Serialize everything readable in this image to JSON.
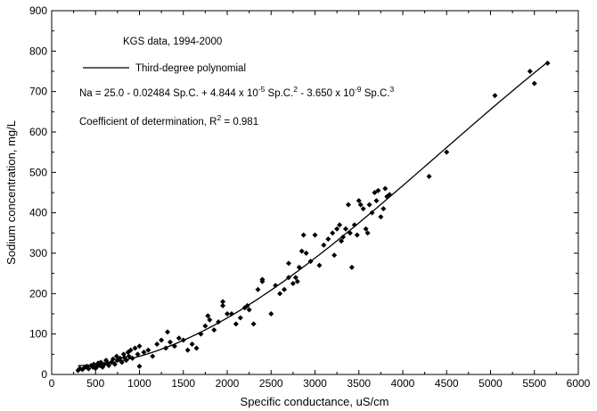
{
  "chart_data": {
    "type": "scatter",
    "xlabel": "Specific conductance, uS/cm",
    "ylabel": "Sodium concentration, mg/L",
    "xlim": [
      0,
      6000
    ],
    "ylim": [
      0,
      900
    ],
    "xticks": [
      "0",
      "500",
      "1000",
      "1500",
      "2000",
      "2500",
      "3000",
      "3500",
      "4000",
      "4500",
      "5000",
      "5500",
      "6000"
    ],
    "yticks": [
      "0",
      "100",
      "200",
      "300",
      "400",
      "500",
      "600",
      "700",
      "800",
      "900"
    ],
    "grid": false,
    "legend": {
      "placement": "top-left",
      "data_label": "KGS data, 1994-2000",
      "line_label": "Third-degree polynomial"
    },
    "annotations": {
      "equation": {
        "prefix": "Na = 25.0 - 0.02484 Sp.C. + 4.844 x 10",
        "exp1": "-5",
        "mid1": " Sp.C.",
        "exp2": "2",
        "mid2": " - 3.650 x 10",
        "exp3": "-9",
        "mid3": " Sp.C.",
        "exp4": "3"
      },
      "r2": {
        "prefix": "Coefficient of determination, R",
        "exp": "2",
        "suffix": " = 0.981"
      }
    },
    "fit": {
      "name": "Third-degree polynomial",
      "coefficients": [
        25.0,
        -0.02484,
        4.844e-05,
        -3.65e-09
      ],
      "x_range": [
        300,
        5650
      ]
    },
    "series": [
      {
        "name": "KGS data, 1994-2000",
        "marker": "diamond",
        "points": [
          [
            300,
            10
          ],
          [
            320,
            15
          ],
          [
            350,
            12
          ],
          [
            380,
            18
          ],
          [
            400,
            20
          ],
          [
            420,
            14
          ],
          [
            450,
            22
          ],
          [
            470,
            18
          ],
          [
            480,
            25
          ],
          [
            500,
            15
          ],
          [
            520,
            20
          ],
          [
            530,
            28
          ],
          [
            550,
            22
          ],
          [
            560,
            30
          ],
          [
            580,
            18
          ],
          [
            600,
            25
          ],
          [
            620,
            35
          ],
          [
            640,
            28
          ],
          [
            650,
            22
          ],
          [
            680,
            30
          ],
          [
            700,
            38
          ],
          [
            720,
            25
          ],
          [
            740,
            45
          ],
          [
            750,
            35
          ],
          [
            780,
            40
          ],
          [
            800,
            30
          ],
          [
            820,
            50
          ],
          [
            830,
            42
          ],
          [
            850,
            35
          ],
          [
            870,
            55
          ],
          [
            880,
            45
          ],
          [
            900,
            60
          ],
          [
            920,
            40
          ],
          [
            950,
            65
          ],
          [
            980,
            50
          ],
          [
            1000,
            20
          ],
          [
            1000,
            70
          ],
          [
            1050,
            55
          ],
          [
            1100,
            60
          ],
          [
            1150,
            45
          ],
          [
            1200,
            75
          ],
          [
            1250,
            85
          ],
          [
            1300,
            65
          ],
          [
            1320,
            105
          ],
          [
            1350,
            80
          ],
          [
            1400,
            70
          ],
          [
            1450,
            90
          ],
          [
            1500,
            85
          ],
          [
            1550,
            60
          ],
          [
            1600,
            75
          ],
          [
            1650,
            65
          ],
          [
            1700,
            100
          ],
          [
            1750,
            120
          ],
          [
            1780,
            145
          ],
          [
            1800,
            135
          ],
          [
            1850,
            110
          ],
          [
            1900,
            130
          ],
          [
            1950,
            170
          ],
          [
            1950,
            180
          ],
          [
            2000,
            150
          ],
          [
            2050,
            150
          ],
          [
            2100,
            125
          ],
          [
            2150,
            140
          ],
          [
            2200,
            165
          ],
          [
            2230,
            170
          ],
          [
            2250,
            160
          ],
          [
            2300,
            125
          ],
          [
            2350,
            210
          ],
          [
            2400,
            235
          ],
          [
            2400,
            230
          ],
          [
            2500,
            150
          ],
          [
            2550,
            220
          ],
          [
            2600,
            200
          ],
          [
            2650,
            210
          ],
          [
            2700,
            240
          ],
          [
            2700,
            275
          ],
          [
            2750,
            225
          ],
          [
            2780,
            240
          ],
          [
            2800,
            230
          ],
          [
            2820,
            265
          ],
          [
            2850,
            305
          ],
          [
            2870,
            345
          ],
          [
            2900,
            300
          ],
          [
            2950,
            280
          ],
          [
            3000,
            345
          ],
          [
            3050,
            270
          ],
          [
            3100,
            320
          ],
          [
            3150,
            335
          ],
          [
            3200,
            350
          ],
          [
            3220,
            295
          ],
          [
            3250,
            360
          ],
          [
            3280,
            370
          ],
          [
            3300,
            330
          ],
          [
            3320,
            340
          ],
          [
            3350,
            360
          ],
          [
            3380,
            420
          ],
          [
            3400,
            350
          ],
          [
            3420,
            265
          ],
          [
            3450,
            370
          ],
          [
            3480,
            345
          ],
          [
            3500,
            430
          ],
          [
            3520,
            420
          ],
          [
            3550,
            410
          ],
          [
            3580,
            360
          ],
          [
            3600,
            350
          ],
          [
            3620,
            420
          ],
          [
            3650,
            400
          ],
          [
            3680,
            450
          ],
          [
            3700,
            430
          ],
          [
            3720,
            455
          ],
          [
            3750,
            390
          ],
          [
            3780,
            410
          ],
          [
            3800,
            460
          ],
          [
            3820,
            440
          ],
          [
            3850,
            445
          ],
          [
            4300,
            490
          ],
          [
            4500,
            550
          ],
          [
            5050,
            690
          ],
          [
            5450,
            750
          ],
          [
            5500,
            720
          ],
          [
            5650,
            770
          ]
        ]
      }
    ]
  }
}
